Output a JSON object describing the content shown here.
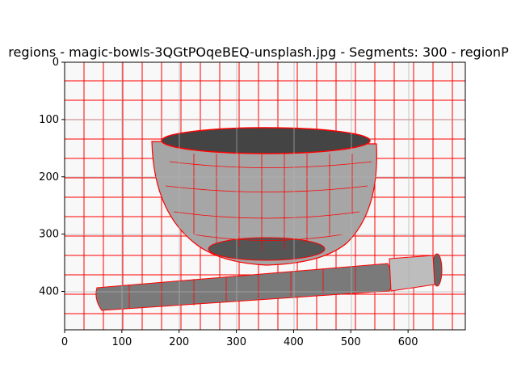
{
  "chart_data": {
    "type": "image",
    "title": "regions - magic-bowls-3QGtPOqeBEQ-unsplash.jpg - Segments: 300 - regionP",
    "xlabel": "",
    "ylabel": "",
    "xlim": [
      0,
      700
    ],
    "ylim": [
      467,
      0
    ],
    "x_ticks": [
      0,
      100,
      200,
      300,
      400,
      500,
      600
    ],
    "y_ticks": [
      0,
      100,
      200,
      300,
      400
    ],
    "grid": true,
    "grid_color": "#b0b0b0",
    "boundary_color": "#ff0000",
    "background_color": "#f8f8f8",
    "content": "grayscale segmented photo of a bowl and a rolling pin with red region boundaries"
  }
}
